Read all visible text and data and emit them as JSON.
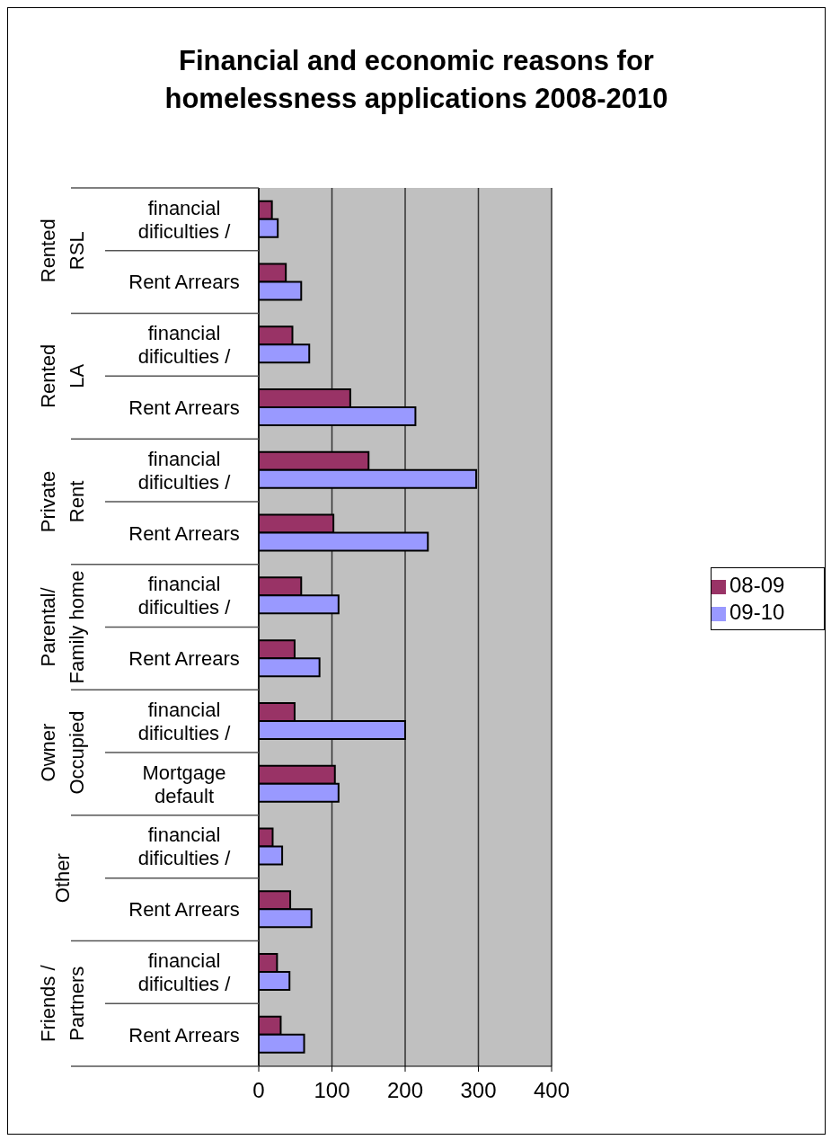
{
  "chart_data": {
    "type": "bar",
    "orientation": "horizontal",
    "title": "Financial and economic reasons for homelessness applications 2008-2010",
    "categories": [
      "financial dificulties /",
      "Rent Arrears",
      "financial dificulties /",
      "Rent Arrears",
      "financial dificulties /",
      "Rent Arrears",
      "financial dificulties /",
      "Rent Arrears",
      "financial dificulties /",
      "Mortgage default",
      "financial dificulties /",
      "Rent Arrears",
      "financial dificulties /",
      "Rent Arrears"
    ],
    "annotations": [
      "Rented RSL",
      "Rented LA",
      "Private Rent",
      "Parental/ Family home",
      "Owner Occupied",
      "Other",
      "Friends / Partners"
    ],
    "series": [
      {
        "name": "08-09",
        "color": "#993366",
        "values": [
          18,
          37,
          46,
          125,
          150,
          102,
          58,
          49,
          49,
          104,
          19,
          43,
          25,
          30
        ]
      },
      {
        "name": "09-10",
        "color": "#9999ff",
        "values": [
          26,
          58,
          69,
          214,
          297,
          231,
          109,
          83,
          200,
          109,
          32,
          72,
          42,
          62
        ]
      }
    ],
    "xlim": [
      0,
      400
    ],
    "xticks": [
      0,
      100,
      200,
      300,
      400
    ],
    "grid": "x",
    "legend": "right"
  }
}
